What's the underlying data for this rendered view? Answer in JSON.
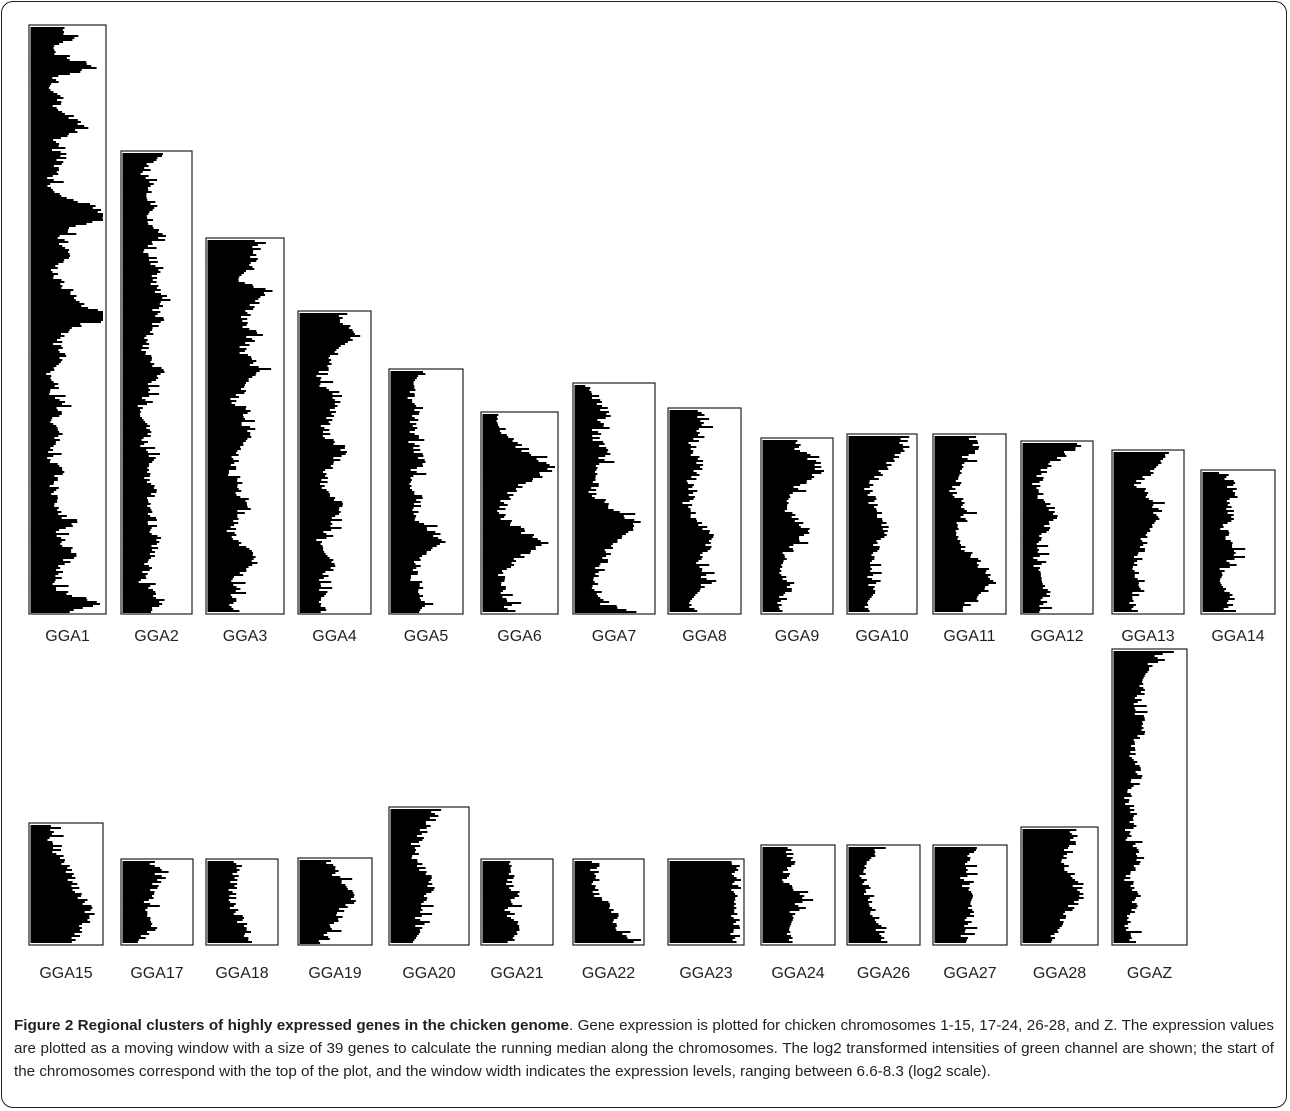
{
  "figure": {
    "caption_title": "Figure 2 Regional clusters of highly expressed genes in the chicken genome",
    "caption_text": ". Gene expression is plotted for chicken chromosomes 1-15, 17-24, 26-28, and Z. The expression values are plotted as a moving window with a size of 39 genes to calculate the running median along the chromosomes. The log2 transformed intensities of green channel are shown; the start of the chromosomes correspond with the top of the plot, and the window width indicates the expression levels, ranging between 6.6-8.3 (log2 scale)."
  },
  "chart_data": {
    "type": "bar",
    "orientation": "horizontal profiles",
    "value_range_log2": [
      6.6,
      8.3
    ],
    "axis_direction": "chromosome start at top of each panel",
    "bar_color": "#000000",
    "rows": [
      {
        "panels": [
          {
            "label": "GGA1",
            "profile": [
              0.4,
              0.55,
              0.3,
              0.45,
              0.85,
              0.35,
              0.3,
              0.45,
              0.35,
              0.55,
              0.75,
              0.4,
              0.3,
              0.45,
              0.35,
              0.3,
              0.25,
              0.4,
              0.8,
              1.1,
              0.6,
              0.4,
              0.45,
              0.55,
              0.35,
              0.3,
              0.45,
              0.6,
              0.7,
              1.25,
              0.65,
              0.4,
              0.35,
              0.45,
              0.3,
              0.25,
              0.35,
              0.3,
              0.45,
              0.35,
              0.3,
              0.4,
              0.3,
              0.25,
              0.35,
              0.4,
              0.3,
              0.35,
              0.3,
              0.4,
              0.55,
              0.35,
              0.45,
              0.6,
              0.45,
              0.4,
              0.3,
              0.45,
              0.95,
              0.5
            ]
          },
          {
            "label": "GGA2",
            "profile": [
              0.55,
              0.4,
              0.3,
              0.45,
              0.35,
              0.5,
              0.4,
              0.45,
              0.6,
              0.35,
              0.4,
              0.55,
              0.45,
              0.5,
              0.65,
              0.5,
              0.55,
              0.4,
              0.35,
              0.3,
              0.45,
              0.6,
              0.4,
              0.35,
              0.3,
              0.25,
              0.4,
              0.35,
              0.3,
              0.45,
              0.35,
              0.3,
              0.5,
              0.4,
              0.35,
              0.45,
              0.4,
              0.55,
              0.45,
              0.4,
              0.35,
              0.3,
              0.45,
              0.55,
              0.35
            ]
          },
          {
            "label": "GGA3",
            "profile": [
              0.7,
              0.55,
              0.65,
              0.55,
              0.45,
              0.85,
              0.65,
              0.55,
              0.45,
              0.6,
              0.55,
              0.45,
              0.6,
              0.7,
              0.5,
              0.4,
              0.35,
              0.55,
              0.45,
              0.6,
              0.5,
              0.4,
              0.35,
              0.3,
              0.45,
              0.4,
              0.55,
              0.45,
              0.35,
              0.3,
              0.4,
              0.55,
              0.65,
              0.45,
              0.35,
              0.4,
              0.3,
              0.45
            ]
          },
          {
            "label": "GGA4",
            "profile": [
              0.55,
              0.65,
              0.85,
              0.65,
              0.5,
              0.4,
              0.3,
              0.35,
              0.55,
              0.5,
              0.45,
              0.35,
              0.4,
              0.65,
              0.55,
              0.4,
              0.35,
              0.3,
              0.55,
              0.6,
              0.45,
              0.4,
              0.3,
              0.35,
              0.5,
              0.4,
              0.3,
              0.35,
              0.25,
              0.3
            ]
          },
          {
            "label": "GGA5",
            "profile": [
              0.45,
              0.4,
              0.35,
              0.3,
              0.4,
              0.35,
              0.3,
              0.35,
              0.3,
              0.4,
              0.45,
              0.35,
              0.3,
              0.25,
              0.35,
              0.4,
              0.3,
              0.45,
              0.6,
              0.75,
              0.55,
              0.4,
              0.35,
              0.3,
              0.45,
              0.4,
              0.55,
              0.35
            ]
          },
          {
            "label": "GGA6",
            "profile": [
              0.2,
              0.25,
              0.3,
              0.4,
              0.55,
              0.75,
              0.95,
              0.8,
              0.55,
              0.4,
              0.3,
              0.25,
              0.3,
              0.45,
              0.65,
              0.85,
              0.6,
              0.4,
              0.3,
              0.25,
              0.3,
              0.25,
              0.35,
              0.3
            ]
          },
          {
            "label": "GGA7",
            "profile": [
              0.2,
              0.25,
              0.35,
              0.4,
              0.3,
              0.25,
              0.35,
              0.4,
              0.3,
              0.25,
              0.2,
              0.25,
              0.4,
              0.6,
              0.8,
              0.65,
              0.5,
              0.4,
              0.35,
              0.3,
              0.25,
              0.3,
              0.35,
              0.8
            ]
          },
          {
            "label": "GGA8",
            "profile": [
              0.4,
              0.5,
              0.45,
              0.35,
              0.3,
              0.45,
              0.4,
              0.3,
              0.35,
              0.25,
              0.3,
              0.4,
              0.55,
              0.6,
              0.5,
              0.4,
              0.45,
              0.55,
              0.4,
              0.3,
              0.35
            ]
          },
          {
            "label": "GGA9",
            "profile": [
              0.45,
              0.55,
              0.75,
              0.85,
              0.6,
              0.45,
              0.35,
              0.3,
              0.55,
              0.65,
              0.5,
              0.35,
              0.3,
              0.25,
              0.4,
              0.35,
              0.25,
              0.3
            ]
          },
          {
            "label": "GGA10",
            "profile": [
              0.8,
              0.85,
              0.7,
              0.55,
              0.4,
              0.3,
              0.35,
              0.4,
              0.5,
              0.55,
              0.45,
              0.4,
              0.35,
              0.3,
              0.35,
              0.4,
              0.3,
              0.25
            ]
          },
          {
            "label": "GGA11",
            "profile": [
              0.55,
              0.6,
              0.45,
              0.4,
              0.3,
              0.25,
              0.35,
              0.45,
              0.4,
              0.3,
              0.35,
              0.45,
              0.6,
              0.75,
              0.85,
              0.7,
              0.5,
              0.35
            ]
          },
          {
            "label": "GGA12",
            "profile": [
              0.85,
              0.6,
              0.4,
              0.25,
              0.2,
              0.25,
              0.4,
              0.45,
              0.35,
              0.25,
              0.2,
              0.2,
              0.25,
              0.3,
              0.35,
              0.3,
              0.25
            ]
          },
          {
            "label": "GGA13",
            "profile": [
              0.8,
              0.65,
              0.45,
              0.35,
              0.5,
              0.6,
              0.65,
              0.55,
              0.45,
              0.4,
              0.35,
              0.3,
              0.4,
              0.35,
              0.25,
              0.3
            ]
          },
          {
            "label": "GGA14",
            "profile": [
              0.3,
              0.4,
              0.45,
              0.35,
              0.4,
              0.3,
              0.35,
              0.45,
              0.4,
              0.3,
              0.25,
              0.35,
              0.4,
              0.3
            ]
          }
        ]
      },
      {
        "panels": [
          {
            "label": "GGA15",
            "profile": [
              0.35,
              0.3,
              0.4,
              0.55,
              0.6,
              0.75,
              0.85,
              0.7,
              0.55
            ]
          },
          {
            "label": "GGA17",
            "profile": [
              0.45,
              0.55,
              0.4,
              0.35,
              0.4,
              0.25
            ]
          },
          {
            "label": "GGA18",
            "profile": [
              0.45,
              0.4,
              0.35,
              0.4,
              0.55,
              0.6
            ]
          },
          {
            "label": "GGA19",
            "profile": [
              0.4,
              0.55,
              0.75,
              0.6,
              0.45,
              0.3
            ]
          },
          {
            "label": "GGA20",
            "profile": [
              0.6,
              0.5,
              0.35,
              0.3,
              0.4,
              0.55,
              0.45,
              0.35,
              0.4,
              0.3
            ]
          },
          {
            "label": "GGA21",
            "profile": [
              0.4,
              0.35,
              0.5,
              0.35,
              0.55,
              0.4
            ]
          },
          {
            "label": "GGA22",
            "profile": [
              0.3,
              0.3,
              0.3,
              0.6,
              0.6,
              0.85
            ]
          },
          {
            "label": "GGA23",
            "profile": [
              0.9,
              0.9,
              0.9,
              0.9,
              0.9,
              0.9
            ]
          },
          {
            "label": "GGA24",
            "profile": [
              0.35,
              0.4,
              0.3,
              0.55,
              0.45,
              0.4,
              0.35
            ]
          },
          {
            "label": "GGA26",
            "profile": [
              0.45,
              0.25,
              0.2,
              0.3,
              0.35,
              0.45,
              0.5
            ]
          },
          {
            "label": "GGA27",
            "profile": [
              0.55,
              0.45,
              0.4,
              0.55,
              0.5,
              0.45,
              0.4
            ]
          },
          {
            "label": "GGA28",
            "profile": [
              0.7,
              0.65,
              0.55,
              0.7,
              0.8,
              0.6,
              0.45,
              0.4
            ]
          },
          {
            "label": "GGAZ",
            "profile": [
              0.65,
              0.55,
              0.45,
              0.4,
              0.35,
              0.3,
              0.4,
              0.35,
              0.3,
              0.25,
              0.3,
              0.35,
              0.25,
              0.2,
              0.25,
              0.3,
              0.2,
              0.25,
              0.35,
              0.3,
              0.2,
              0.25,
              0.3,
              0.25,
              0.2,
              0.25,
              0.3
            ]
          }
        ]
      }
    ]
  }
}
